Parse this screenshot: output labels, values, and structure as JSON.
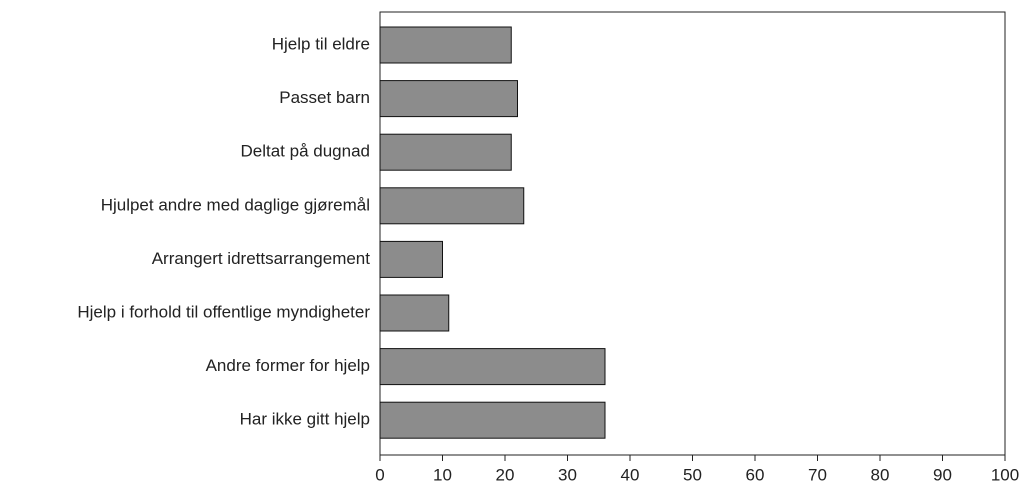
{
  "chart_data": {
    "type": "barh",
    "categories": [
      "Hjelp til eldre",
      "Passet barn",
      "Deltat på dugnad",
      "Hjulpet andre med daglige gjøremål",
      "Arrangert idrettsarrangement",
      "Hjelp i forhold til offentlige myndigheter",
      "Andre former for hjelp",
      "Har ikke gitt hjelp"
    ],
    "values": [
      21,
      22,
      21,
      23,
      10,
      11,
      36,
      36
    ],
    "color": "#8c8c8c",
    "xlim": [
      0,
      100
    ],
    "xticks": [
      0,
      10,
      20,
      30,
      40,
      50,
      60,
      70,
      80,
      90,
      100
    ],
    "grid": false
  }
}
